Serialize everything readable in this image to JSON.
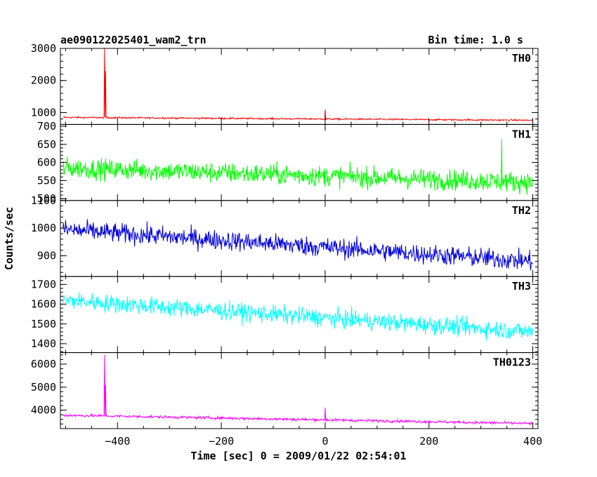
{
  "chart_data": {
    "type": "line",
    "title_left": "ae090122025401_wam2_trn",
    "title_right": "Bin time: 1.0 s",
    "xlabel": "Time [sec] 0 = 2009/01/22 02:54:01",
    "ylabel": "Counts/sec",
    "xlim": [
      -510,
      410
    ],
    "x_ticks": [
      -400,
      -200,
      0,
      200,
      400
    ],
    "x_tick_labels": [
      "−400",
      "−200",
      "0",
      "200",
      "400"
    ],
    "x_range_data": [
      -505,
      400
    ],
    "panels": [
      {
        "name": "TH0",
        "color": "#ff0000",
        "ylim": [
          630,
          3000
        ],
        "y_ticks": [
          1000,
          2000,
          3000
        ],
        "y_tick_labels": [
          "1000",
          "2000",
          "3000"
        ],
        "baseline_start": 850,
        "baseline_end": 760,
        "noise": 25,
        "spikes": [
          {
            "x": -425,
            "y": 3000
          },
          {
            "x": -423,
            "y": 2300
          },
          {
            "x": 0,
            "y": 1100
          }
        ]
      },
      {
        "name": "TH1",
        "color": "#00ff00",
        "ylim": [
          495,
          705
        ],
        "y_ticks": [
          500,
          550,
          600,
          650,
          700
        ],
        "y_tick_labels": [
          "500",
          "550",
          "600",
          "650",
          "700"
        ],
        "baseline_start": 585,
        "baseline_end": 545,
        "noise": 28,
        "spikes": [
          {
            "x": 340,
            "y": 665
          }
        ]
      },
      {
        "name": "TH2",
        "color": "#0000dd",
        "ylim": [
          825,
          1100
        ],
        "y_ticks": [
          900,
          1000,
          1100
        ],
        "y_tick_labels": [
          "900",
          "1000",
          "1100"
        ],
        "baseline_start": 995,
        "baseline_end": 880,
        "noise": 35,
        "spikes": []
      },
      {
        "name": "TH3",
        "color": "#00ffff",
        "ylim": [
          1355,
          1740
        ],
        "y_ticks": [
          1400,
          1500,
          1600,
          1700
        ],
        "y_tick_labels": [
          "1400",
          "1500",
          "1600",
          "1700"
        ],
        "baseline_start": 1620,
        "baseline_end": 1460,
        "noise": 45,
        "spikes": []
      },
      {
        "name": "TH0123",
        "color": "#ff00ff",
        "ylim": [
          3200,
          6500
        ],
        "y_ticks": [
          4000,
          5000,
          6000
        ],
        "y_tick_labels": [
          "4000",
          "5000",
          "6000"
        ],
        "baseline_start": 3780,
        "baseline_end": 3420,
        "noise": 60,
        "spikes": [
          {
            "x": -425,
            "y": 6400
          },
          {
            "x": -423,
            "y": 5100
          },
          {
            "x": 0,
            "y": 4100
          }
        ]
      }
    ]
  }
}
